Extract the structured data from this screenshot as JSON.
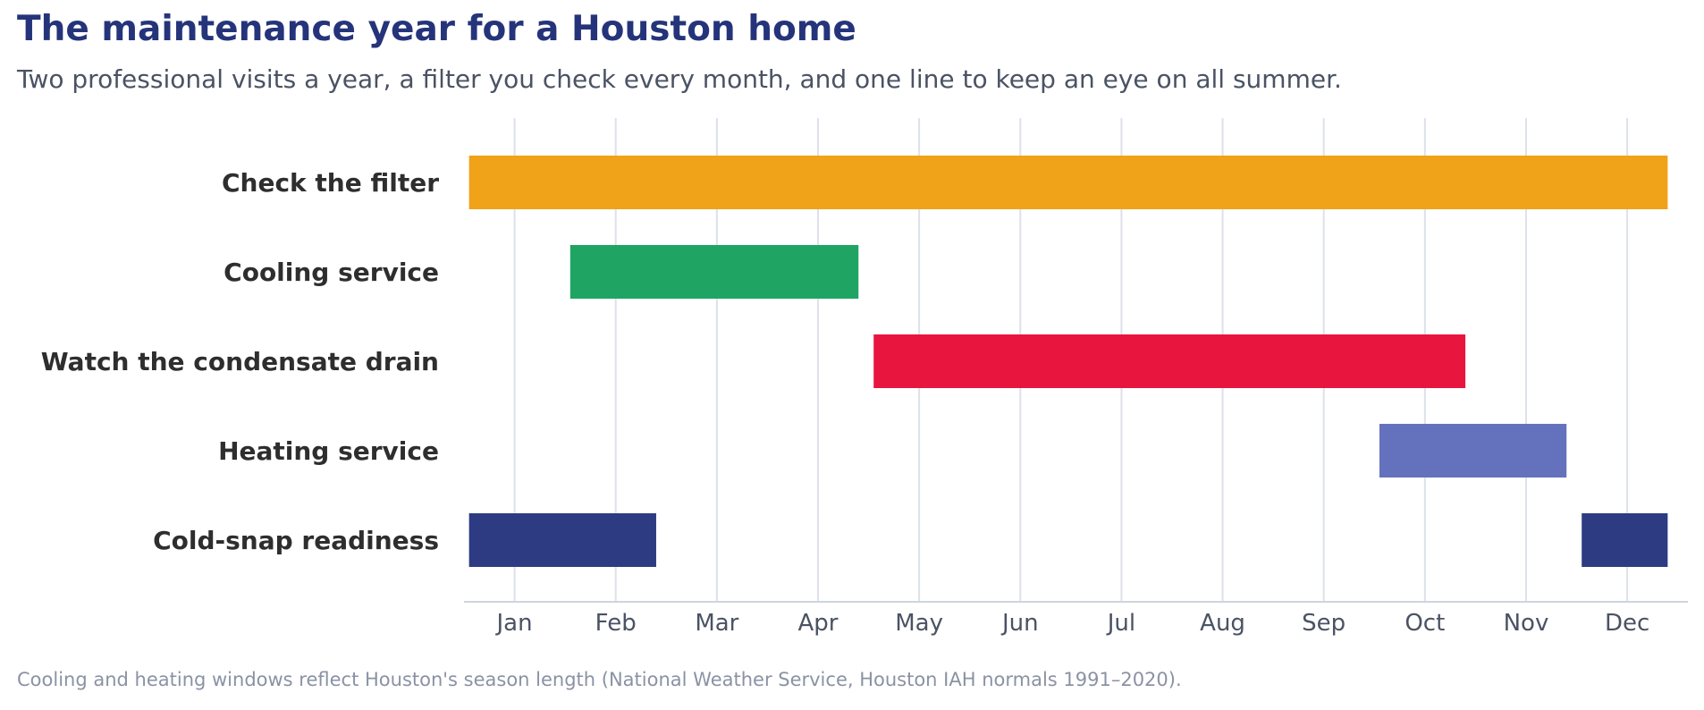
{
  "header": {
    "title": "The maintenance year for a Houston home",
    "subtitle": "Two professional visits a year, a filter you check every month, and one line to keep an eye on all summer."
  },
  "footnote": "Cooling and heating windows reflect Houston's season length (National Weather Service, Houston IAH normals 1991–2020).",
  "chart_data": {
    "type": "bar",
    "orientation": "horizontal-timeline",
    "grid": true,
    "x_axis": {
      "ticks": [
        "Jan",
        "Feb",
        "Mar",
        "Apr",
        "May",
        "Jun",
        "Jul",
        "Aug",
        "Sep",
        "Oct",
        "Nov",
        "Dec"
      ],
      "range": [
        0.5,
        12.6
      ]
    },
    "rows": [
      {
        "label": "Check the filter",
        "color": "#f0a218",
        "segments": [
          [
            0.55,
            12.4
          ]
        ]
      },
      {
        "label": "Cooling service",
        "color": "#1fa463",
        "segments": [
          [
            1.55,
            4.4
          ]
        ]
      },
      {
        "label": "Watch the condensate drain",
        "color": "#e8153f",
        "segments": [
          [
            4.55,
            10.4
          ]
        ]
      },
      {
        "label": "Heating service",
        "color": "#6472bd",
        "segments": [
          [
            9.55,
            11.4
          ]
        ]
      },
      {
        "label": "Cold-snap readiness",
        "color": "#2d3b83",
        "segments": [
          [
            0.55,
            2.4
          ],
          [
            11.55,
            12.4
          ]
        ]
      }
    ]
  }
}
